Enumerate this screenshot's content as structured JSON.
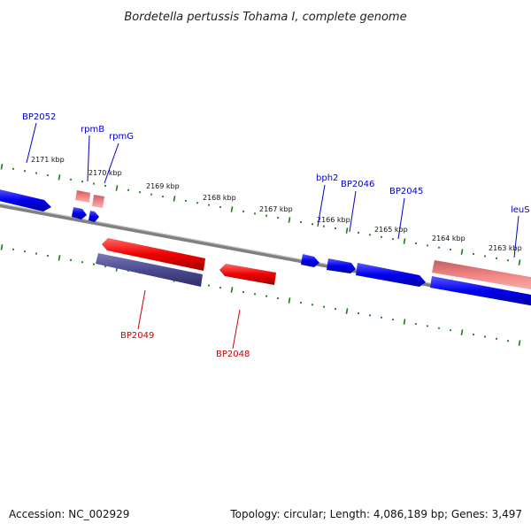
{
  "title": "Bordetella pertussis Tohama I, complete genome",
  "footer": {
    "accession": "Accession: NC_002929",
    "summary": "Topology: circular; Length: 4,086,189 bp; Genes: 3,497"
  },
  "kbp_labels": [
    "2171 kbp",
    "2170 kbp",
    "2169 kbp",
    "2168 kbp",
    "2167 kbp",
    "2166 kbp",
    "2165 kbp",
    "2164 kbp",
    "2163 kbp"
  ],
  "genes_forward": [
    {
      "name": "BP2052",
      "color": "#0000cc"
    },
    {
      "name": "rpmB",
      "color": "#0000cc"
    },
    {
      "name": "rpmG",
      "color": "#0000cc"
    },
    {
      "name": "bph2",
      "color": "#0000cc"
    },
    {
      "name": "BP2046",
      "color": "#0000cc"
    },
    {
      "name": "BP2045",
      "color": "#0000cc"
    },
    {
      "name": "leuS",
      "color": "#0000cc"
    }
  ],
  "genes_reverse": [
    {
      "name": "BP2049",
      "color": "#cc0000"
    },
    {
      "name": "BP2048",
      "color": "#cc0000"
    }
  ],
  "colors": {
    "forward": "#0000ee",
    "reverse": "#ee0000",
    "rna": "#f08080",
    "pseudo": "#4b4b8f",
    "backbone": "#808080",
    "ticks": "#1a7a1a"
  }
}
